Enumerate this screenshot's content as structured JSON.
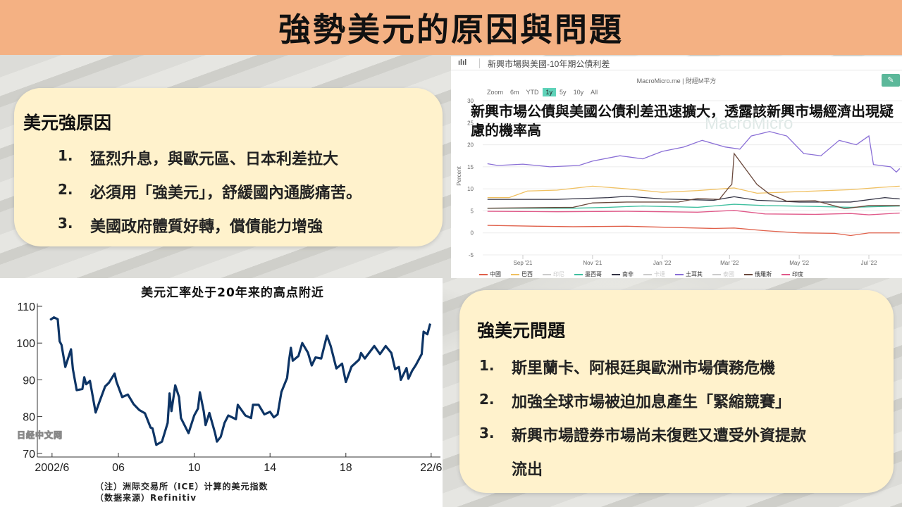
{
  "slide_title": "強勢美元的原因與問題",
  "reasons_box": {
    "title": "美元強原因",
    "items": [
      {
        "num": "1.",
        "text": "猛烈升息，與歐元區、日本利差拉大"
      },
      {
        "num": "2.",
        "text": "必須用「強美元」，舒緩國內通膨痛苦。"
      },
      {
        "num": "3.",
        "text": "美國政府體質好轉，償債能力增強"
      }
    ]
  },
  "problems_box": {
    "title": "強美元問題",
    "items": [
      {
        "num": "1.",
        "text": "斯里蘭卡、阿根廷與歐洲市場債務危機"
      },
      {
        "num": "2.",
        "text": "加強全球市場被迫加息產生「緊縮競賽」"
      },
      {
        "num": "3.",
        "text": "新興市場證券市場尚未復甦又遭受外資提款",
        "text2": "流出"
      }
    ]
  },
  "spread_panel": {
    "toolbar_icon": "bar-chart-icon",
    "toolbar_title": "新興市場與美國-10年期公債利差",
    "source": "MacroMicro.me | 財經M平方",
    "edit_icon": "pencil-icon",
    "zoom_label": "Zoom",
    "zoom_options": [
      "6m",
      "YTD",
      "1y",
      "5y",
      "10y",
      "All"
    ],
    "zoom_selected": "1y",
    "overlay_text": "新興市場公債與美國公債利差迅速擴大，透露該新興市場經濟出現疑慮的機率高",
    "watermark": "MacroMicro"
  },
  "chart_data": [
    {
      "type": "line",
      "title": "",
      "ylabel": "Percent",
      "ylim": [
        -5,
        30
      ],
      "yticks": [
        -5,
        0,
        5,
        10,
        15,
        20,
        25,
        30
      ],
      "xticks": [
        {
          "label": "Sep '21",
          "date": "2021-09-01"
        },
        {
          "label": "Nov '21",
          "date": "2021-11-01"
        },
        {
          "label": "Jan '22",
          "date": "2022-01-01"
        },
        {
          "label": "Mar '22",
          "date": "2022-03-01"
        },
        {
          "label": "May '22",
          "date": "2022-05-01"
        },
        {
          "label": "Jul '22",
          "date": "2022-07-01"
        }
      ],
      "grid": true,
      "legend": "bottom",
      "series": [
        {
          "name": "中國",
          "color": "#e0604a",
          "visible": true,
          "points": [
            [
              "2021-08-01",
              1.7
            ],
            [
              "2021-09-15",
              1.5
            ],
            [
              "2021-10-15",
              1.4
            ],
            [
              "2021-12-01",
              1.5
            ],
            [
              "2022-01-15",
              1.2
            ],
            [
              "2022-02-15",
              1.0
            ],
            [
              "2022-03-05",
              1.1
            ],
            [
              "2022-04-01",
              0.5
            ],
            [
              "2022-05-01",
              0.0
            ],
            [
              "2022-06-01",
              -0.1
            ],
            [
              "2022-06-15",
              -0.6
            ],
            [
              "2022-07-01",
              0.0
            ],
            [
              "2022-07-28",
              0.0
            ]
          ]
        },
        {
          "name": "巴西",
          "color": "#f0c060",
          "visible": true,
          "points": [
            [
              "2021-08-01",
              8.0
            ],
            [
              "2021-08-20",
              8.0
            ],
            [
              "2021-09-05",
              9.5
            ],
            [
              "2021-10-01",
              9.7
            ],
            [
              "2021-11-01",
              10.6
            ],
            [
              "2021-12-01",
              10.0
            ],
            [
              "2022-01-01",
              9.2
            ],
            [
              "2022-02-01",
              9.6
            ],
            [
              "2022-03-05",
              10.2
            ],
            [
              "2022-03-25",
              9.0
            ],
            [
              "2022-04-15",
              9.2
            ],
            [
              "2022-05-15",
              9.5
            ],
            [
              "2022-06-15",
              9.8
            ],
            [
              "2022-07-10",
              10.3
            ],
            [
              "2022-07-28",
              10.6
            ]
          ]
        },
        {
          "name": "印尼",
          "color": "#cccccc",
          "visible": false,
          "points": []
        },
        {
          "name": "墨西哥",
          "color": "#3fbf9f",
          "visible": true,
          "points": [
            [
              "2021-08-01",
              5.6
            ],
            [
              "2021-10-15",
              5.6
            ],
            [
              "2021-11-15",
              5.8
            ],
            [
              "2021-12-15",
              6.1
            ],
            [
              "2022-02-01",
              5.8
            ],
            [
              "2022-03-05",
              6.5
            ],
            [
              "2022-04-01",
              6.2
            ],
            [
              "2022-05-15",
              6.0
            ],
            [
              "2022-06-15",
              5.8
            ],
            [
              "2022-07-28",
              6.1
            ]
          ]
        },
        {
          "name": "南非",
          "color": "#333344",
          "visible": true,
          "points": [
            [
              "2021-08-01",
              7.6
            ],
            [
              "2021-10-01",
              7.6
            ],
            [
              "2021-11-15",
              8.0
            ],
            [
              "2021-12-01",
              8.3
            ],
            [
              "2022-01-01",
              7.7
            ],
            [
              "2022-02-15",
              7.4
            ],
            [
              "2022-03-05",
              8.2
            ],
            [
              "2022-03-25",
              7.4
            ],
            [
              "2022-05-01",
              7.0
            ],
            [
              "2022-06-15",
              7.0
            ],
            [
              "2022-07-15",
              8.0
            ],
            [
              "2022-07-28",
              7.7
            ]
          ]
        },
        {
          "name": "卡達",
          "color": "#cccccc",
          "visible": false,
          "points": []
        },
        {
          "name": "土耳其",
          "color": "#8a6fd6",
          "visible": true,
          "points": [
            [
              "2021-08-01",
              15.7
            ],
            [
              "2021-08-10",
              15.3
            ],
            [
              "2021-09-01",
              15.6
            ],
            [
              "2021-09-25",
              15.0
            ],
            [
              "2021-10-20",
              15.3
            ],
            [
              "2021-11-01",
              16.3
            ],
            [
              "2021-11-25",
              17.5
            ],
            [
              "2021-12-15",
              16.8
            ],
            [
              "2022-01-01",
              18.5
            ],
            [
              "2022-01-20",
              19.5
            ],
            [
              "2022-02-05",
              21.0
            ],
            [
              "2022-02-25",
              19.5
            ],
            [
              "2022-03-10",
              19.0
            ],
            [
              "2022-03-20",
              22.0
            ],
            [
              "2022-04-05",
              23.0
            ],
            [
              "2022-04-20",
              22.0
            ],
            [
              "2022-05-05",
              18.0
            ],
            [
              "2022-05-20",
              17.5
            ],
            [
              "2022-06-05",
              21.0
            ],
            [
              "2022-06-20",
              20.0
            ],
            [
              "2022-07-01",
              22.0
            ],
            [
              "2022-07-05",
              15.5
            ],
            [
              "2022-07-20",
              15.0
            ],
            [
              "2022-07-25",
              13.8
            ],
            [
              "2022-07-28",
              14.6
            ]
          ]
        },
        {
          "name": "泰國",
          "color": "#cccccc",
          "visible": false,
          "points": []
        },
        {
          "name": "俄羅斯",
          "color": "#6b4a3e",
          "visible": true,
          "points": [
            [
              "2021-08-01",
              5.6
            ],
            [
              "2021-10-15",
              5.8
            ],
            [
              "2021-11-01",
              6.8
            ],
            [
              "2021-12-01",
              7.0
            ],
            [
              "2022-01-15",
              7.0
            ],
            [
              "2022-02-01",
              7.8
            ],
            [
              "2022-02-20",
              7.6
            ],
            [
              "2022-03-01",
              10.5
            ],
            [
              "2022-03-03",
              11.0
            ],
            [
              "2022-03-05",
              18.0
            ],
            [
              "2022-03-25",
              11.0
            ],
            [
              "2022-04-05",
              8.8
            ],
            [
              "2022-04-20",
              7.2
            ],
            [
              "2022-05-15",
              7.3
            ],
            [
              "2022-06-10",
              5.5
            ],
            [
              "2022-07-01",
              6.2
            ],
            [
              "2022-07-28",
              6.2
            ]
          ]
        },
        {
          "name": "印度",
          "color": "#e05a8a",
          "visible": true,
          "points": [
            [
              "2021-08-01",
              4.9
            ],
            [
              "2021-10-01",
              4.8
            ],
            [
              "2021-12-01",
              4.9
            ],
            [
              "2022-02-01",
              4.7
            ],
            [
              "2022-03-05",
              5.1
            ],
            [
              "2022-04-01",
              4.3
            ],
            [
              "2022-05-15",
              4.2
            ],
            [
              "2022-06-15",
              4.4
            ],
            [
              "2022-07-01",
              4.1
            ],
            [
              "2022-07-28",
              4.5
            ]
          ]
        }
      ]
    },
    {
      "type": "line",
      "title": "美元汇率处于20年来的高点附近",
      "ylim": [
        70,
        110
      ],
      "yticks": [
        70,
        80,
        90,
        100,
        110
      ],
      "xticks": [
        {
          "label": "2002/6",
          "x": 2002.5
        },
        {
          "label": "06",
          "x": 2006
        },
        {
          "label": "10",
          "x": 2010
        },
        {
          "label": "14",
          "x": 2014
        },
        {
          "label": "18",
          "x": 2018
        },
        {
          "label": "22/6",
          "x": 2022.5
        }
      ],
      "note": "（注）洲际交易所（ICE）计算的美元指数",
      "source": "（数据来源）Refinitiv",
      "watermark": "日经中文网",
      "series": [
        {
          "color": "#0d3465",
          "points": [
            [
              2002.4,
              106.3
            ],
            [
              2002.6,
              107
            ],
            [
              2002.8,
              106.5
            ],
            [
              2002.9,
              100.5
            ],
            [
              2003.0,
              99.5
            ],
            [
              2003.2,
              93.5
            ],
            [
              2003.5,
              98.3
            ],
            [
              2003.6,
              92.9
            ],
            [
              2003.8,
              87.2
            ],
            [
              2004.1,
              87.5
            ],
            [
              2004.2,
              90.7
            ],
            [
              2004.3,
              88.8
            ],
            [
              2004.5,
              89.7
            ],
            [
              2004.8,
              81.1
            ],
            [
              2005.0,
              84
            ],
            [
              2005.3,
              88.2
            ],
            [
              2005.5,
              89.2
            ],
            [
              2005.8,
              91.7
            ],
            [
              2005.9,
              89.5
            ],
            [
              2006.2,
              85.3
            ],
            [
              2006.5,
              86
            ],
            [
              2006.8,
              83.4
            ],
            [
              2007.1,
              81.8
            ],
            [
              2007.4,
              80.9
            ],
            [
              2007.7,
              77
            ],
            [
              2007.8,
              76.8
            ],
            [
              2008.0,
              72.3
            ],
            [
              2008.3,
              73.2
            ],
            [
              2008.6,
              78.3
            ],
            [
              2008.7,
              86.3
            ],
            [
              2008.8,
              81.5
            ],
            [
              2009.0,
              88.5
            ],
            [
              2009.2,
              85.3
            ],
            [
              2009.3,
              79.6
            ],
            [
              2009.7,
              75.5
            ],
            [
              2010.0,
              80.3
            ],
            [
              2010.2,
              82.2
            ],
            [
              2010.3,
              86.6
            ],
            [
              2010.5,
              81.5
            ],
            [
              2010.6,
              77.7
            ],
            [
              2010.8,
              81
            ],
            [
              2011.1,
              75.5
            ],
            [
              2011.2,
              73.2
            ],
            [
              2011.4,
              74.5
            ],
            [
              2011.6,
              78.3
            ],
            [
              2011.8,
              80.3
            ],
            [
              2012.2,
              79.3
            ],
            [
              2012.3,
              83.2
            ],
            [
              2012.7,
              80.3
            ],
            [
              2013.0,
              79.6
            ],
            [
              2013.1,
              83.2
            ],
            [
              2013.4,
              83.2
            ],
            [
              2013.7,
              80.6
            ],
            [
              2014.0,
              81.3
            ],
            [
              2014.2,
              79.8
            ],
            [
              2014.4,
              80.6
            ],
            [
              2014.6,
              86.7
            ],
            [
              2014.9,
              90.5
            ],
            [
              2015.0,
              95.2
            ],
            [
              2015.1,
              98.7
            ],
            [
              2015.2,
              95.2
            ],
            [
              2015.5,
              96.5
            ],
            [
              2015.7,
              100
            ],
            [
              2016.0,
              97.4
            ],
            [
              2016.2,
              93.9
            ],
            [
              2016.4,
              96.1
            ],
            [
              2016.7,
              95.8
            ],
            [
              2017.0,
              102
            ],
            [
              2017.2,
              99.2
            ],
            [
              2017.5,
              93.1
            ],
            [
              2017.8,
              94.4
            ],
            [
              2018.0,
              89.4
            ],
            [
              2018.3,
              93.6
            ],
            [
              2018.7,
              95.5
            ],
            [
              2018.8,
              97.3
            ],
            [
              2019.0,
              95.8
            ],
            [
              2019.5,
              99.2
            ],
            [
              2019.8,
              97
            ],
            [
              2020.1,
              99.2
            ],
            [
              2020.4,
              97.3
            ],
            [
              2020.6,
              92.9
            ],
            [
              2020.8,
              93.5
            ],
            [
              2020.9,
              90
            ],
            [
              2021.2,
              93.2
            ],
            [
              2021.3,
              90.3
            ],
            [
              2021.5,
              92.5
            ],
            [
              2021.7,
              94.1
            ],
            [
              2022.0,
              97
            ],
            [
              2022.1,
              103.1
            ],
            [
              2022.3,
              102.4
            ],
            [
              2022.45,
              105.3
            ]
          ]
        }
      ]
    }
  ]
}
